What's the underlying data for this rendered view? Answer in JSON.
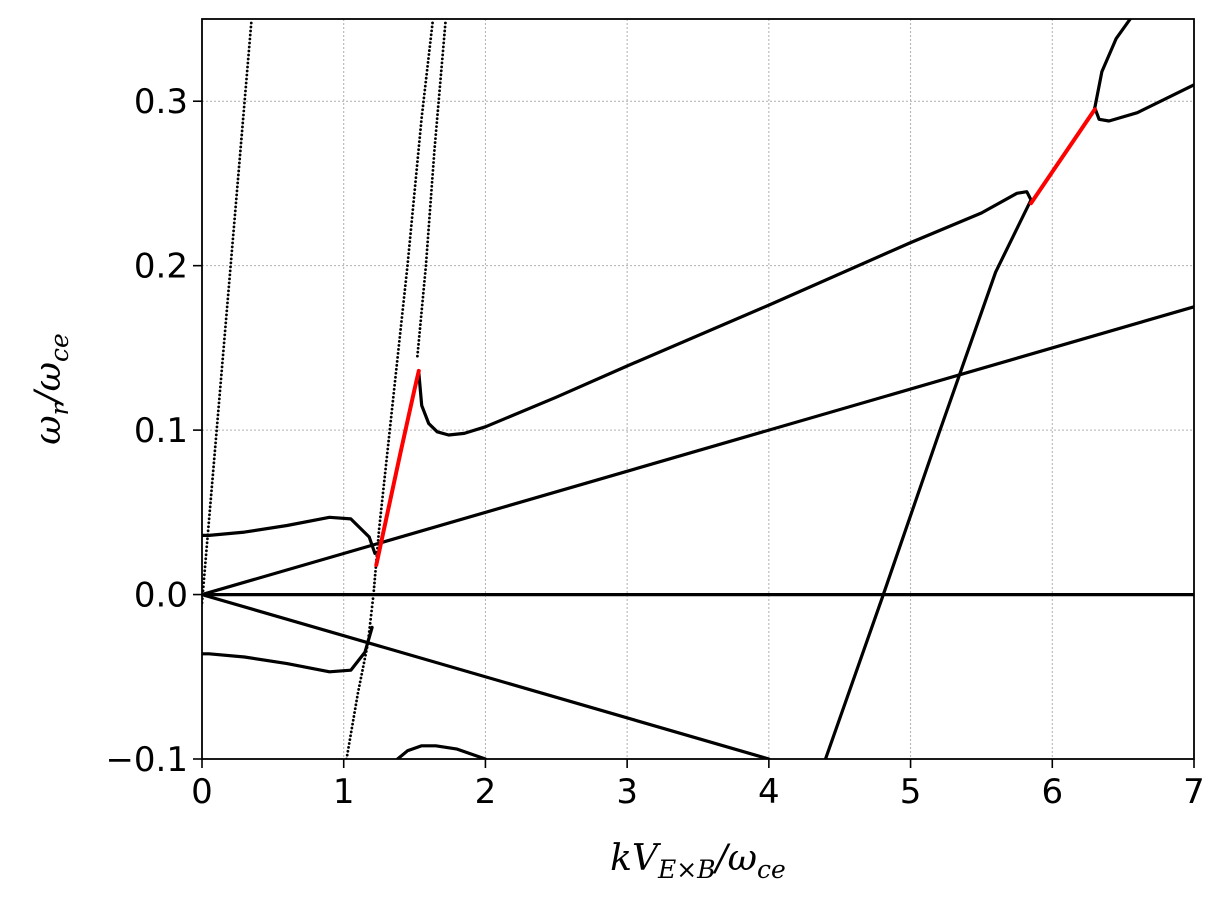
{
  "chart_data": {
    "type": "scatter",
    "xlabel": "kV_{E×B}/ω_{ce}",
    "ylabel": "ω_r/ω_ce",
    "xlim": [
      0,
      7
    ],
    "ylim": [
      -0.1,
      0.35
    ],
    "xticks": [
      0,
      1,
      2,
      3,
      4,
      5,
      6,
      7
    ],
    "xtick_labels": [
      "0",
      "1",
      "2",
      "3",
      "4",
      "5",
      "6",
      "7"
    ],
    "yticks": [
      -0.1,
      0.0,
      0.1,
      0.2,
      0.3
    ],
    "ytick_labels": [
      "−0.1",
      "0.0",
      "0.1",
      "0.2",
      "0.3"
    ],
    "grid": true,
    "legend": "none",
    "colors": {
      "stable": "#000000",
      "unstable": "#ff0000",
      "grid": "#b0b0b0"
    },
    "series": [
      {
        "color": "black",
        "style": "line",
        "x": [
          0,
          7
        ],
        "y": [
          0,
          0
        ]
      },
      {
        "color": "black",
        "style": "line",
        "x": [
          0,
          7
        ],
        "y": [
          0,
          0.175
        ]
      },
      {
        "color": "black",
        "style": "line",
        "x": [
          0,
          4.0
        ],
        "y": [
          0,
          -0.1
        ]
      },
      {
        "color": "black",
        "style": "dots",
        "x": [
          0,
          0.35
        ],
        "y": [
          -0.005,
          0.35
        ]
      },
      {
        "color": "black",
        "style": "dots",
        "x": [
          1.02,
          1.1,
          1.17,
          1.21,
          1.25,
          1.35,
          1.45,
          1.55,
          1.63
        ],
        "y": [
          -0.1,
          -0.06,
          -0.03,
          0.0,
          0.04,
          0.12,
          0.2,
          0.29,
          0.35
        ]
      },
      {
        "color": "black",
        "style": "dots",
        "x": [
          1.52,
          1.58,
          1.64,
          1.72
        ],
        "y": [
          0.145,
          0.2,
          0.27,
          0.35
        ]
      },
      {
        "color": "black",
        "style": "line",
        "x": [
          0,
          0.05,
          0.3,
          0.6,
          0.9,
          1.05,
          1.18,
          1.22
        ],
        "y": [
          0.036,
          0.036,
          0.038,
          0.042,
          0.047,
          0.046,
          0.035,
          0.025
        ]
      },
      {
        "color": "black",
        "style": "line",
        "x": [
          0,
          0.05,
          0.3,
          0.6,
          0.9,
          1.05,
          1.15,
          1.2
        ],
        "y": [
          -0.036,
          -0.036,
          -0.038,
          -0.042,
          -0.047,
          -0.046,
          -0.035,
          -0.02
        ]
      },
      {
        "color": "black",
        "style": "line",
        "x": [
          1.53,
          1.55,
          1.6,
          1.66,
          1.74,
          1.85,
          2.0,
          2.5,
          3.0,
          4.0,
          5.0,
          5.5,
          5.75,
          5.82,
          5.85
        ],
        "y": [
          0.135,
          0.115,
          0.104,
          0.099,
          0.097,
          0.098,
          0.102,
          0.12,
          0.139,
          0.176,
          0.214,
          0.232,
          0.244,
          0.245,
          0.24
        ]
      },
      {
        "color": "black",
        "style": "line",
        "x": [
          4.4,
          4.8,
          5.2,
          5.6,
          5.85
        ],
        "y": [
          -0.1,
          -0.002,
          0.098,
          0.196,
          0.24
        ]
      },
      {
        "color": "black",
        "style": "line",
        "x": [
          6.3,
          6.33,
          6.4,
          6.6,
          7.0
        ],
        "y": [
          0.296,
          0.289,
          0.288,
          0.293,
          0.31
        ]
      },
      {
        "color": "black",
        "style": "line",
        "x": [
          6.3,
          6.35,
          6.45,
          6.55
        ],
        "y": [
          0.296,
          0.318,
          0.338,
          0.35
        ]
      },
      {
        "color": "black",
        "style": "line",
        "x": [
          1.38,
          1.45,
          1.55,
          1.65,
          1.8,
          2.0
        ],
        "y": [
          -0.1,
          -0.095,
          -0.092,
          -0.092,
          -0.094,
          -0.1
        ]
      },
      {
        "color": "red",
        "style": "line",
        "x": [
          1.23,
          1.3,
          1.4,
          1.5,
          1.53
        ],
        "y": [
          0.018,
          0.046,
          0.086,
          0.125,
          0.136
        ]
      },
      {
        "color": "red",
        "style": "line",
        "x": [
          5.85,
          6.0,
          6.15,
          6.3
        ],
        "y": [
          0.238,
          0.257,
          0.276,
          0.295
        ]
      }
    ]
  }
}
